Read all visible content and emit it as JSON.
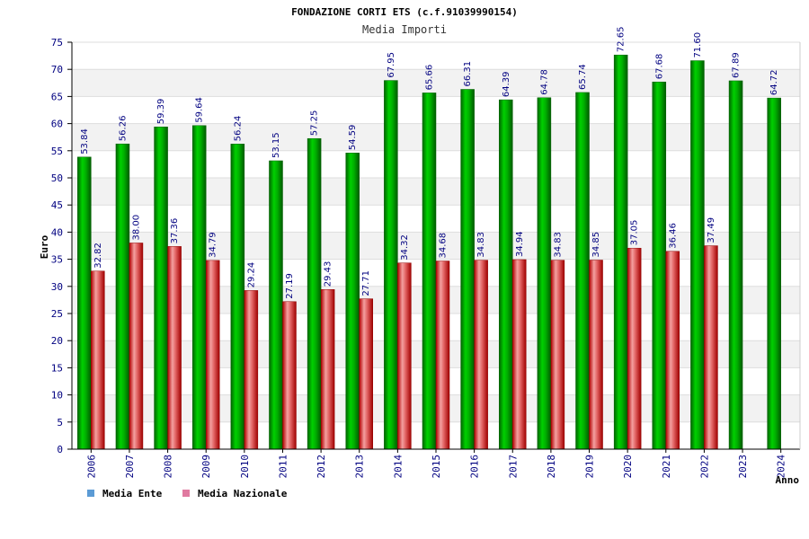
{
  "chart_data": {
    "type": "bar",
    "title": "FONDAZIONE CORTI ETS (c.f.91039990154)",
    "subtitle": "Media Importi",
    "ylabel": "Euro",
    "xlabel": "Anno",
    "ylim": [
      0,
      75
    ],
    "ytick_step": 5,
    "grid": true,
    "categories": [
      "2006",
      "2007",
      "2008",
      "2009",
      "2010",
      "2011",
      "2012",
      "2013",
      "2014",
      "2015",
      "2016",
      "2017",
      "2018",
      "2019",
      "2020",
      "2021",
      "2022",
      "2023",
      "2024"
    ],
    "series": [
      {
        "name": "Media Ente",
        "color": "#00b400",
        "legend_color": "#5b9bd5",
        "values": [
          53.84,
          56.26,
          59.39,
          59.64,
          56.24,
          53.15,
          57.25,
          54.59,
          67.95,
          65.66,
          66.31,
          64.39,
          64.78,
          65.74,
          72.65,
          67.68,
          71.6,
          67.89,
          64.72
        ],
        "labels": [
          "53.84",
          "56.26",
          "59.39",
          "59.64",
          "56.24",
          "53.15",
          "57.25",
          "54.59",
          "67.95",
          "65.66",
          "66.31",
          "64.39",
          "64.78",
          "65.74",
          "72.65",
          "67.68",
          "71.60",
          "67.89",
          "64.72"
        ]
      },
      {
        "name": "Media Nazionale",
        "color": "#e02020",
        "legend_color": "#e07aa0",
        "values": [
          32.82,
          38.0,
          37.36,
          34.79,
          29.24,
          27.19,
          29.43,
          27.71,
          34.32,
          34.68,
          34.83,
          34.94,
          34.83,
          34.85,
          37.05,
          36.46,
          37.49,
          null,
          null
        ],
        "labels": [
          "32.82",
          "38.00",
          "37.36",
          "34.79",
          "29.24",
          "27.19",
          "29.43",
          "27.71",
          "34.32",
          "34.68",
          "34.83",
          "34.94",
          "34.83",
          "34.85",
          "37.05",
          "36.46",
          "37.49",
          "",
          ""
        ]
      }
    ],
    "legend_position": "bottom-left"
  }
}
